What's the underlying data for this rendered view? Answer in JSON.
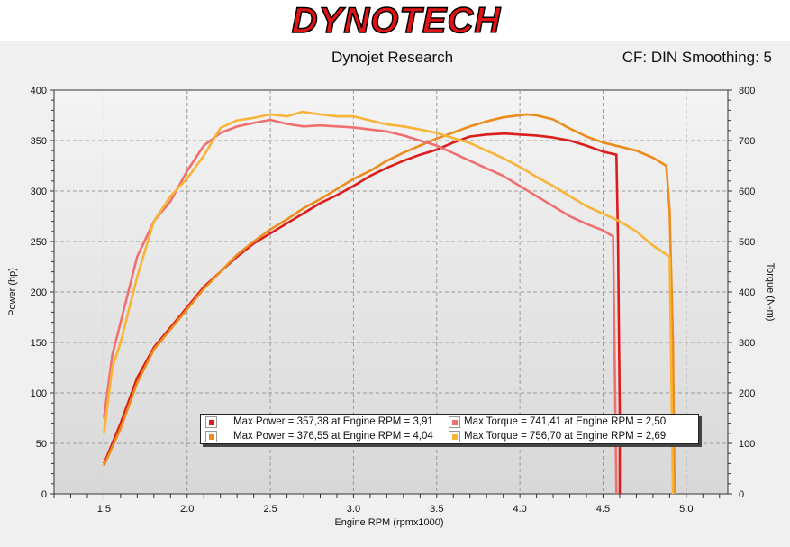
{
  "header": {
    "brand": "DYNOTECH",
    "software": "Dynojet Research",
    "correction": "CF: DIN Smoothing: 5"
  },
  "colors": {
    "red_power": "#dd1c1c",
    "orange_power": "#ec8c1c",
    "salmon_torque": "#f07070",
    "yellow_torque": "#f8b436"
  },
  "legend": {
    "entries": [
      {
        "text": "Max Power = 357,38 at Engine RPM = 3,91",
        "color": "#dd1c1c"
      },
      {
        "text": "Max Torque = 741,41 at Engine RPM = 2,50",
        "color": "#f07070"
      },
      {
        "text": "Max Power = 376,55 at Engine RPM = 4,04",
        "color": "#ec8c1c"
      },
      {
        "text": "Max Torque = 756,70 at Engine RPM = 2,69",
        "color": "#f8b436"
      }
    ]
  },
  "chart_data": {
    "type": "line",
    "xlabel": "Engine RPM (rpmx1000)",
    "ylabel": "Power (hp)",
    "y2label": "Torque (N-m)",
    "xlim": [
      1.2,
      5.25
    ],
    "ylim": [
      0,
      400
    ],
    "y2lim": [
      0,
      800
    ],
    "xticks": [
      "1.5",
      "2.0",
      "2.5",
      "3.0",
      "3.5",
      "4.0",
      "4.5",
      "5.0"
    ],
    "yticks": [
      "0",
      "50",
      "100",
      "150",
      "200",
      "250",
      "300",
      "350",
      "400"
    ],
    "y2ticks": [
      "0",
      "100",
      "200",
      "300",
      "400",
      "500",
      "600",
      "700",
      "800"
    ],
    "grid": true,
    "series": [
      {
        "axis": "left",
        "color": "#dd1c1c",
        "points": [
          [
            1.5,
            30
          ],
          [
            1.6,
            70
          ],
          [
            1.7,
            115
          ],
          [
            1.8,
            145
          ],
          [
            1.9,
            165
          ],
          [
            2.0,
            185
          ],
          [
            2.1,
            205
          ],
          [
            2.2,
            220
          ],
          [
            2.3,
            235
          ],
          [
            2.4,
            248
          ],
          [
            2.5,
            258
          ],
          [
            2.6,
            268
          ],
          [
            2.7,
            278
          ],
          [
            2.8,
            288
          ],
          [
            2.9,
            296
          ],
          [
            3.0,
            305
          ],
          [
            3.1,
            315
          ],
          [
            3.2,
            323
          ],
          [
            3.3,
            330
          ],
          [
            3.4,
            336
          ],
          [
            3.5,
            341
          ],
          [
            3.6,
            348
          ],
          [
            3.7,
            354
          ],
          [
            3.8,
            356
          ],
          [
            3.91,
            357
          ],
          [
            4.0,
            356
          ],
          [
            4.1,
            355
          ],
          [
            4.2,
            353
          ],
          [
            4.3,
            350
          ],
          [
            4.4,
            345
          ],
          [
            4.5,
            339
          ],
          [
            4.58,
            336
          ],
          [
            4.59,
            250
          ],
          [
            4.6,
            80
          ],
          [
            4.6,
            0
          ]
        ]
      },
      {
        "axis": "left",
        "color": "#ec8c1c",
        "points": [
          [
            1.5,
            28
          ],
          [
            1.6,
            65
          ],
          [
            1.7,
            110
          ],
          [
            1.8,
            143
          ],
          [
            1.9,
            163
          ],
          [
            2.0,
            183
          ],
          [
            2.1,
            203
          ],
          [
            2.2,
            220
          ],
          [
            2.3,
            237
          ],
          [
            2.4,
            250
          ],
          [
            2.5,
            262
          ],
          [
            2.6,
            272
          ],
          [
            2.7,
            283
          ],
          [
            2.8,
            292
          ],
          [
            2.9,
            302
          ],
          [
            3.0,
            312
          ],
          [
            3.1,
            320
          ],
          [
            3.2,
            330
          ],
          [
            3.3,
            338
          ],
          [
            3.4,
            345
          ],
          [
            3.5,
            352
          ],
          [
            3.6,
            358
          ],
          [
            3.7,
            364
          ],
          [
            3.8,
            369
          ],
          [
            3.9,
            373
          ],
          [
            4.04,
            376
          ],
          [
            4.1,
            375
          ],
          [
            4.2,
            371
          ],
          [
            4.3,
            362
          ],
          [
            4.4,
            354
          ],
          [
            4.5,
            348
          ],
          [
            4.6,
            344
          ],
          [
            4.7,
            340
          ],
          [
            4.8,
            333
          ],
          [
            4.88,
            325
          ],
          [
            4.9,
            280
          ],
          [
            4.92,
            150
          ],
          [
            4.93,
            0
          ]
        ]
      },
      {
        "axis": "right",
        "color": "#f07070",
        "points": [
          [
            1.5,
            150
          ],
          [
            1.55,
            275
          ],
          [
            1.6,
            340
          ],
          [
            1.7,
            470
          ],
          [
            1.8,
            540
          ],
          [
            1.9,
            580
          ],
          [
            2.0,
            640
          ],
          [
            2.1,
            690
          ],
          [
            2.2,
            715
          ],
          [
            2.3,
            728
          ],
          [
            2.4,
            735
          ],
          [
            2.5,
            741
          ],
          [
            2.6,
            733
          ],
          [
            2.7,
            728
          ],
          [
            2.8,
            730
          ],
          [
            2.9,
            728
          ],
          [
            3.0,
            726
          ],
          [
            3.1,
            722
          ],
          [
            3.2,
            718
          ],
          [
            3.3,
            710
          ],
          [
            3.4,
            700
          ],
          [
            3.5,
            690
          ],
          [
            3.6,
            675
          ],
          [
            3.7,
            660
          ],
          [
            3.8,
            645
          ],
          [
            3.9,
            630
          ],
          [
            4.0,
            610
          ],
          [
            4.1,
            590
          ],
          [
            4.2,
            570
          ],
          [
            4.3,
            550
          ],
          [
            4.4,
            535
          ],
          [
            4.5,
            522
          ],
          [
            4.56,
            510
          ],
          [
            4.58,
            0
          ]
        ]
      },
      {
        "axis": "right",
        "color": "#f8b436",
        "points": [
          [
            1.5,
            120
          ],
          [
            1.55,
            250
          ],
          [
            1.6,
            300
          ],
          [
            1.7,
            430
          ],
          [
            1.8,
            540
          ],
          [
            1.9,
            590
          ],
          [
            2.0,
            625
          ],
          [
            2.1,
            670
          ],
          [
            2.2,
            725
          ],
          [
            2.3,
            740
          ],
          [
            2.4,
            745
          ],
          [
            2.5,
            752
          ],
          [
            2.6,
            748
          ],
          [
            2.69,
            757
          ],
          [
            2.8,
            752
          ],
          [
            2.9,
            748
          ],
          [
            3.0,
            748
          ],
          [
            3.1,
            740
          ],
          [
            3.2,
            732
          ],
          [
            3.3,
            728
          ],
          [
            3.4,
            722
          ],
          [
            3.5,
            715
          ],
          [
            3.6,
            705
          ],
          [
            3.7,
            695
          ],
          [
            3.8,
            680
          ],
          [
            3.9,
            665
          ],
          [
            4.0,
            648
          ],
          [
            4.1,
            628
          ],
          [
            4.2,
            610
          ],
          [
            4.3,
            590
          ],
          [
            4.4,
            570
          ],
          [
            4.5,
            555
          ],
          [
            4.6,
            540
          ],
          [
            4.7,
            520
          ],
          [
            4.8,
            492
          ],
          [
            4.9,
            470
          ],
          [
            4.92,
            0
          ]
        ]
      }
    ]
  }
}
